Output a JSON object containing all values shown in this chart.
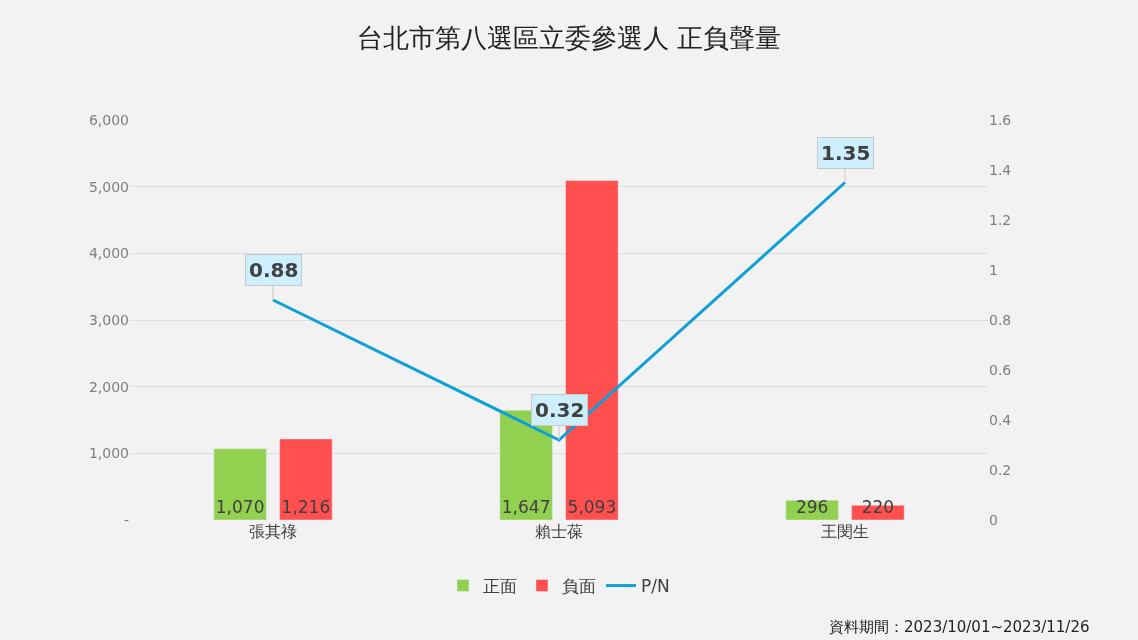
{
  "chart_data": {
    "type": "bar",
    "title": "台北市第八選區立委參選人 正負聲量",
    "categories": [
      "張其祿",
      "賴士葆",
      "王閔生"
    ],
    "series": [
      {
        "name": "正面",
        "color": "#92d050",
        "values": [
          1070,
          1647,
          296
        ],
        "value_labels": [
          "1,070",
          "1,647",
          "296"
        ]
      },
      {
        "name": "負面",
        "color": "#ff4f4f",
        "values": [
          1216,
          5093,
          220
        ],
        "value_labels": [
          "1,216",
          "5,093",
          "220"
        ]
      },
      {
        "name": "P/N",
        "color": "#0fa0d8",
        "values": [
          0.88,
          0.32,
          1.35
        ],
        "value_labels": [
          "0.88",
          "0.32",
          "1.35"
        ],
        "type": "line",
        "axis": "y2"
      }
    ],
    "ylim": [
      0,
      6000
    ],
    "yticks": [
      {
        "value": 0,
        "label": "-"
      },
      {
        "value": 1000,
        "label": "1,000"
      },
      {
        "value": 2000,
        "label": "2,000"
      },
      {
        "value": 3000,
        "label": "3,000"
      },
      {
        "value": 4000,
        "label": "4,000"
      },
      {
        "value": 5000,
        "label": "5,000"
      },
      {
        "value": 6000,
        "label": "6,000"
      }
    ],
    "y2lim": [
      0,
      1.6
    ],
    "y2ticks": [
      0,
      0.2,
      0.4,
      0.6,
      0.8,
      {
        "value": 1,
        "label": "1"
      },
      1.2,
      1.4,
      1.6
    ],
    "grid": "y",
    "legend": "bottom",
    "marker": "none",
    "line_style": "solid",
    "annotations": [
      "資料期間：2023/10/01~2023/11/26"
    ]
  }
}
